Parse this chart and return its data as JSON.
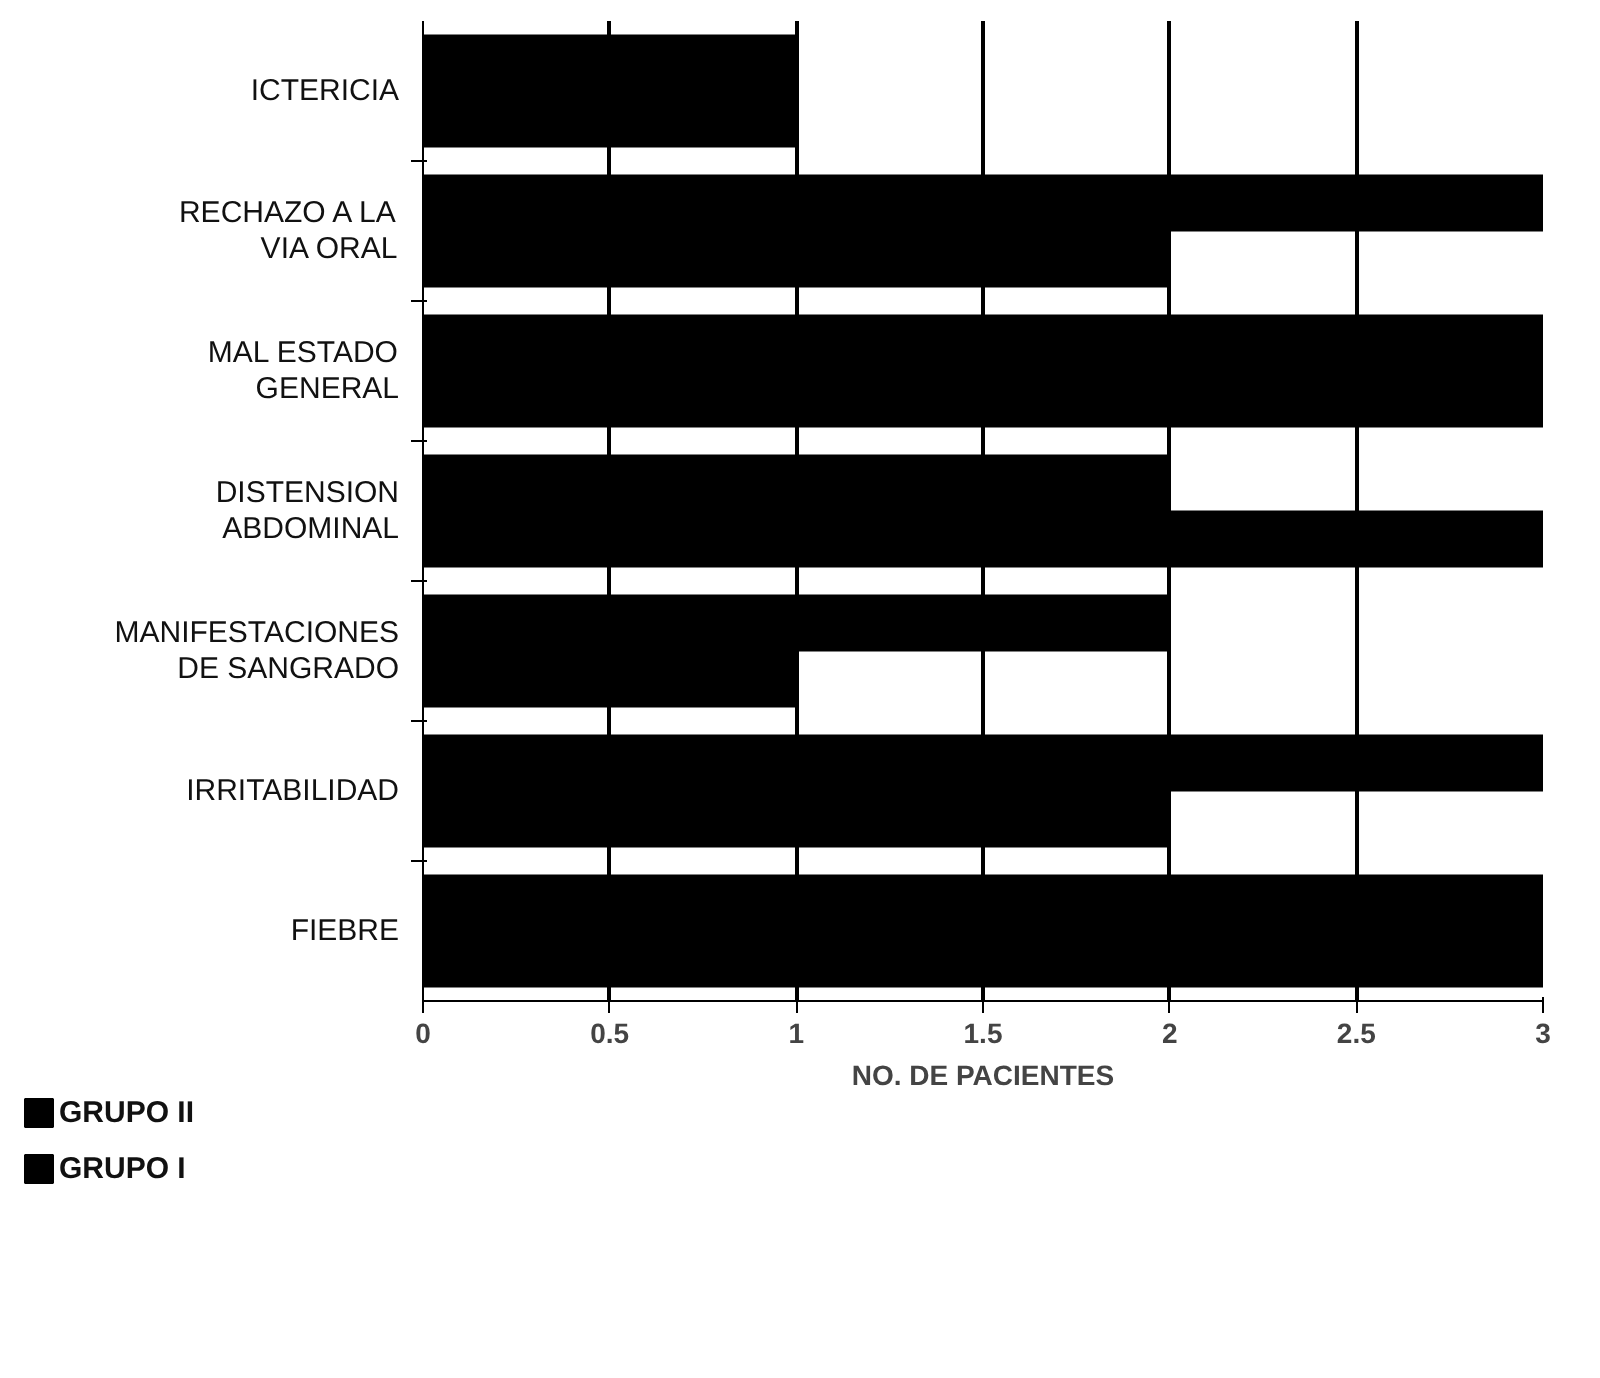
{
  "chart_data": {
    "type": "bar",
    "orientation": "horizontal",
    "xlabel": "NO. DE PACIENTES",
    "categories": [
      "ICTERICIA",
      "RECHAZO A LA VIA ORAL",
      "MAL ESTADO GENERAL",
      "DISTENSION ABDOMINAL",
      "MANIFESTACIONES DE SANGRADO",
      "IRRITABILIDAD",
      "FIEBRE"
    ],
    "series": [
      {
        "name": "GRUPO II",
        "color": "#000000",
        "values": [
          1,
          3,
          3,
          2,
          2,
          3,
          3
        ]
      },
      {
        "name": "GRUPO I",
        "color": "#000000",
        "values": [
          1,
          2,
          3,
          3,
          1,
          2,
          3
        ]
      }
    ],
    "xlim": [
      0,
      3
    ],
    "xticks": [
      0,
      0.5,
      1,
      1.5,
      2,
      2.5,
      3
    ],
    "grid": "x",
    "legend": "bottom left"
  }
}
